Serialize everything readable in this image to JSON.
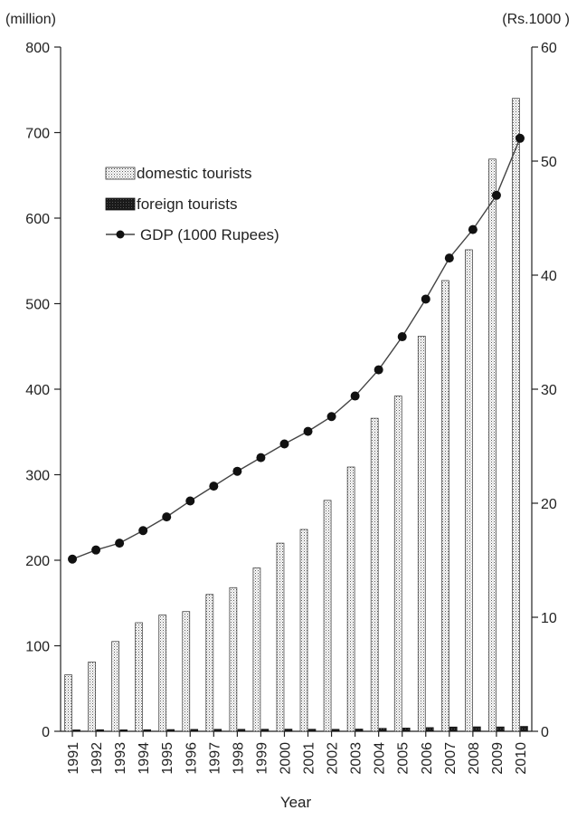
{
  "chart_data": {
    "type": "bar",
    "title": "",
    "xlabel": "Year",
    "ylabel_left_unit": "(million)",
    "ylabel_right_unit": "(Rs.1000 )",
    "categories": [
      "1991",
      "1992",
      "1993",
      "1994",
      "1995",
      "1996",
      "1997",
      "1998",
      "1999",
      "2000",
      "2001",
      "2002",
      "2003",
      "2004",
      "2005",
      "2006",
      "2007",
      "2008",
      "2009",
      "2010"
    ],
    "ylim_left": [
      0,
      800
    ],
    "yticks_left": [
      "0",
      "100",
      "200",
      "300",
      "400",
      "500",
      "600",
      "700",
      "800"
    ],
    "ylim_right": [
      0,
      60
    ],
    "yticks_right": [
      "0",
      "10",
      "20",
      "30",
      "40",
      "50",
      "60"
    ],
    "legend_position": "top-left",
    "series": [
      {
        "name": "domestic tourists",
        "type": "bar",
        "axis": "left",
        "pattern": "dotted",
        "values": [
          66,
          81,
          105,
          127,
          136,
          140,
          160,
          168,
          191,
          220,
          236,
          270,
          309,
          366,
          392,
          462,
          527,
          563,
          669,
          740
        ]
      },
      {
        "name": "foreign tourists",
        "type": "bar",
        "axis": "left",
        "pattern": "solid-dark",
        "values": [
          1.7,
          1.9,
          1.8,
          1.9,
          2.1,
          2.3,
          2.4,
          2.4,
          2.5,
          2.6,
          2.5,
          2.4,
          2.7,
          3.5,
          3.9,
          4.4,
          5.1,
          5.3,
          5.2,
          5.8
        ]
      },
      {
        "name": "GDP (1000 Rupees)",
        "type": "line",
        "axis": "right",
        "marker": "circle",
        "values": [
          15.1,
          15.9,
          16.5,
          17.6,
          18.8,
          20.2,
          21.5,
          22.8,
          24.0,
          25.2,
          26.3,
          27.6,
          29.4,
          31.7,
          34.6,
          37.9,
          41.5,
          44.0,
          47.0,
          52.0
        ]
      }
    ],
    "colors": {
      "bar_fill_light": "#ffffff",
      "bar_dots": "#555555",
      "bar_dark": "#1a1a1a",
      "line": "#444444",
      "marker": "#111111"
    }
  }
}
